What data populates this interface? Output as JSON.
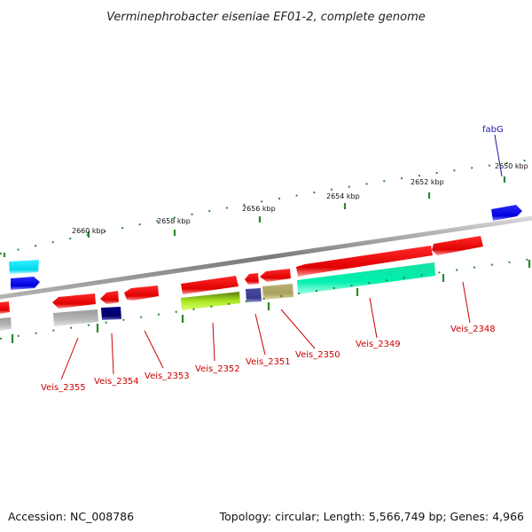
{
  "title": "Verminephrobacter eiseniae EF01-2, complete genome",
  "scale_labels": {
    "kb2650": "2650 kbp",
    "kb2652": "2652 kbp",
    "kb2654": "2654 kbp",
    "kb2656": "2656 kbp",
    "kb2658": "2658 kbp",
    "kb2660": "2660 kbp"
  },
  "gene_labels": {
    "fabG": "fabG",
    "veis_2348": "Veis_2348",
    "veis_2349": "Veis_2349",
    "veis_2350": "Veis_2350",
    "veis_2351": "Veis_2351",
    "veis_2352": "Veis_2352",
    "veis_2353": "Veis_2353",
    "veis_2354": "Veis_2354",
    "veis_2355": "Veis_2355"
  },
  "footer": {
    "accession": "Accession: NC_008786",
    "summary": "Topology: circular; Length: 5,566,749 bp; Genes: 4,966"
  },
  "colors": {
    "gene_red": "#e80000",
    "gene_blue": "#0000dd",
    "gene_cyan": "#00e0f0",
    "backbone": "#888888",
    "tick_green": "#2a8a2a",
    "label_red": "#cc0000",
    "label_blue": "#1a1aa6"
  }
}
